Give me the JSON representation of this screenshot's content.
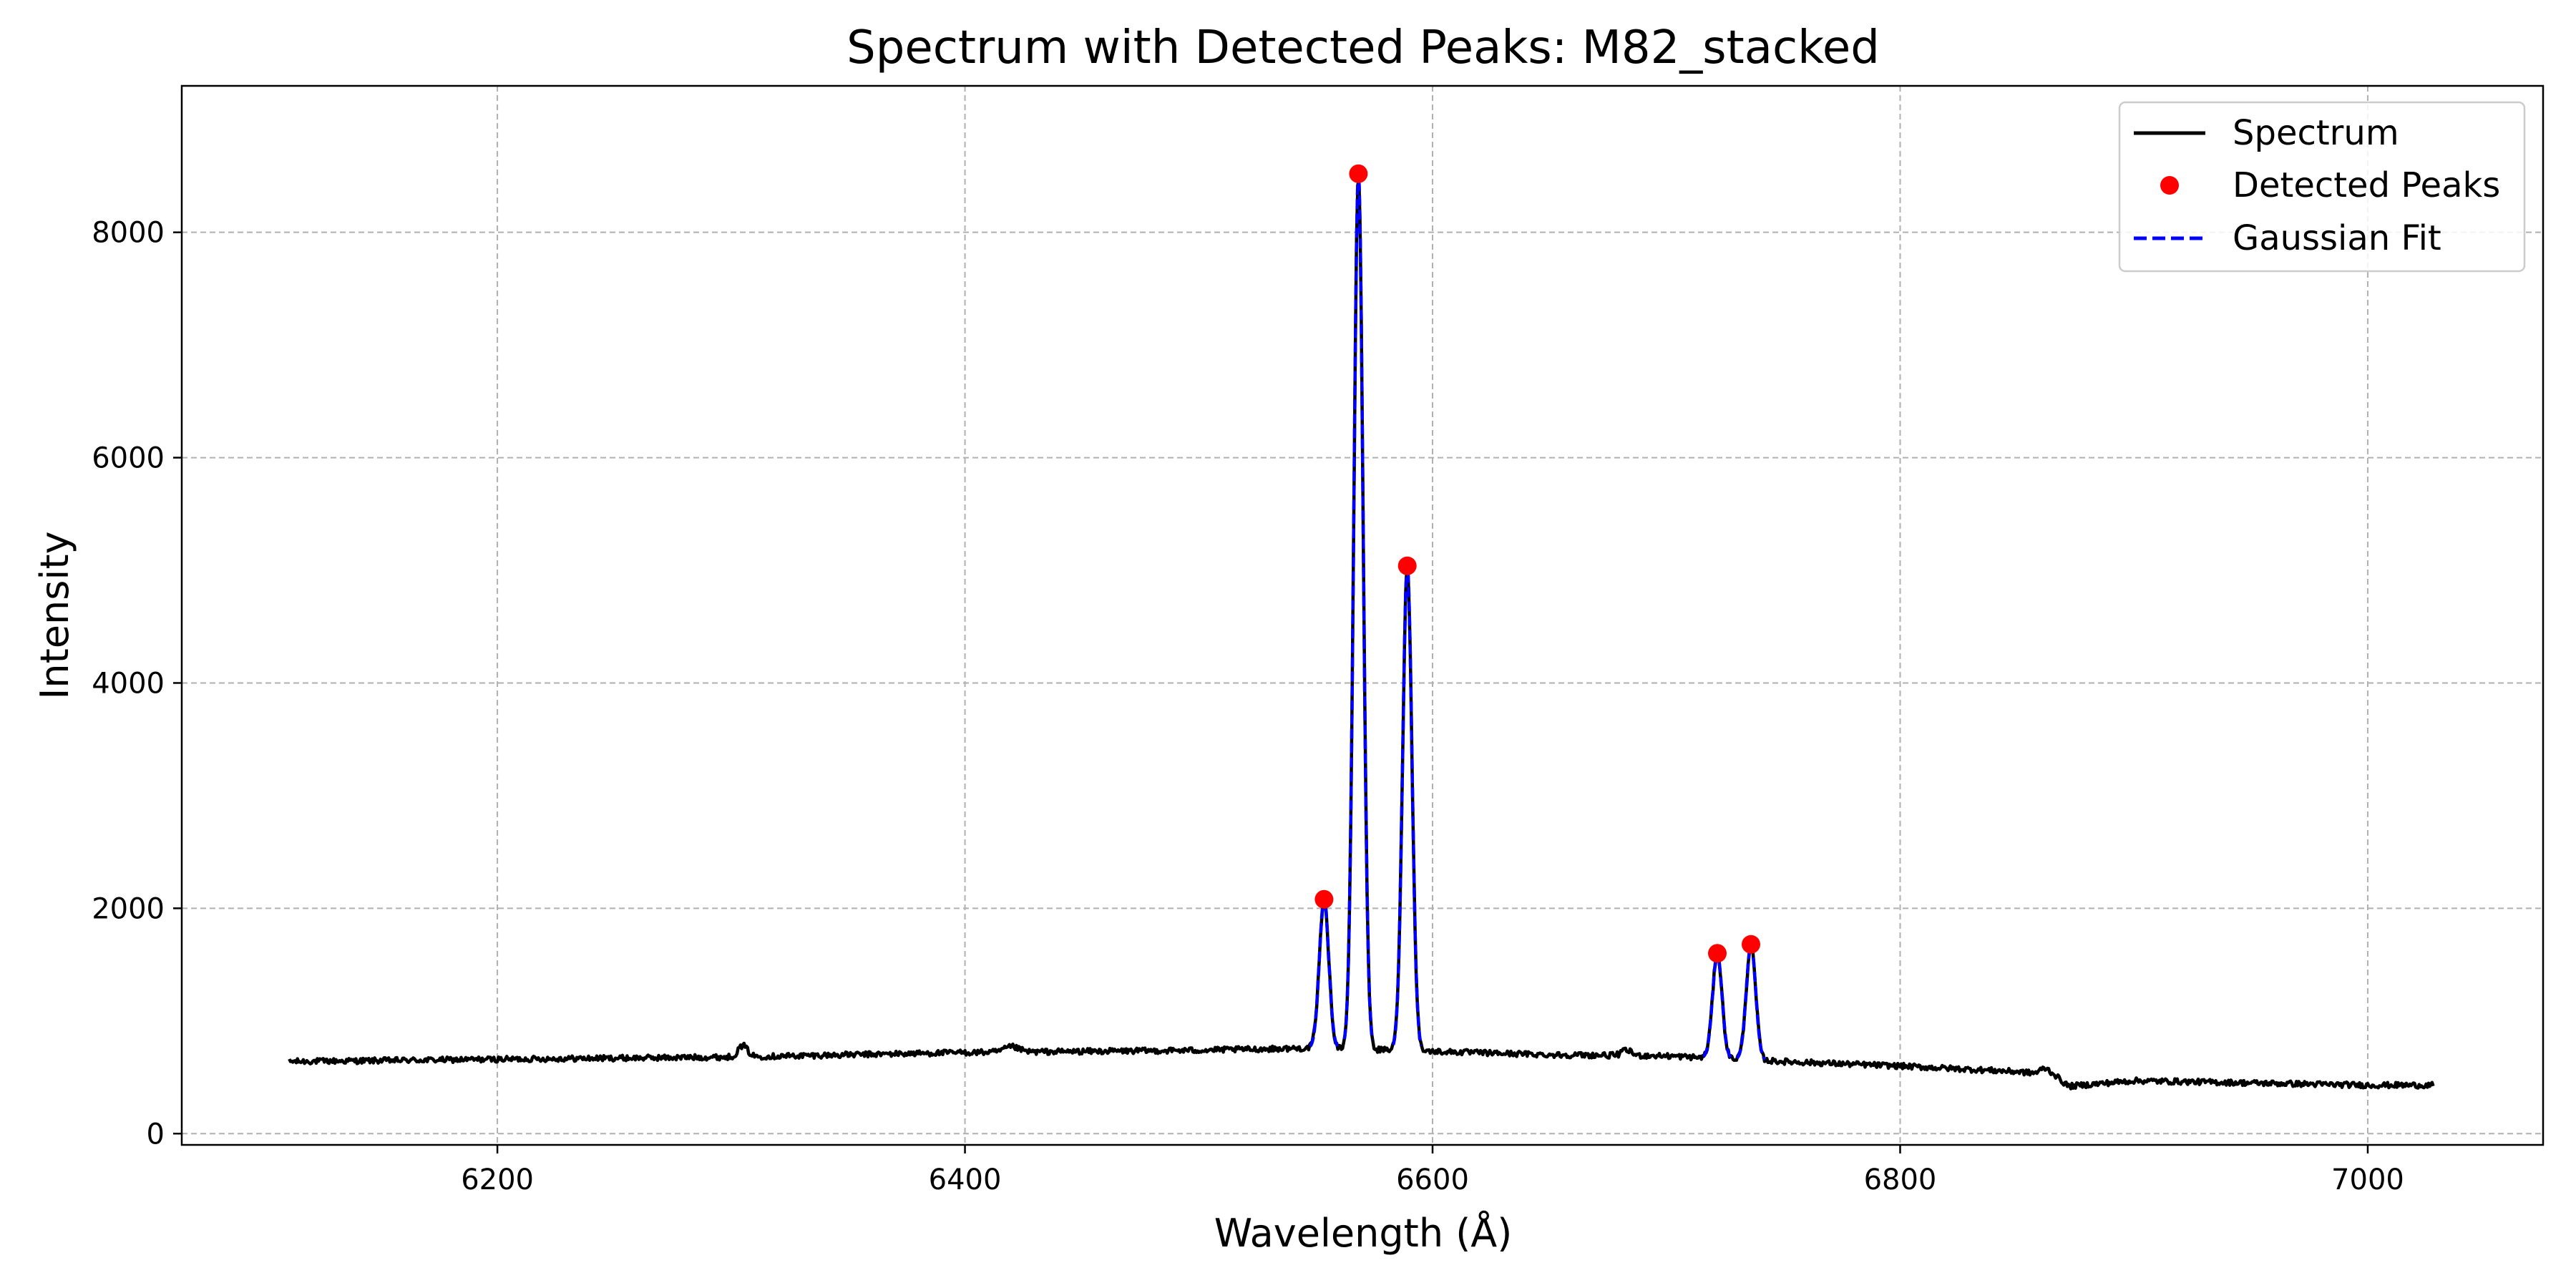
{
  "chart_data": {
    "type": "line",
    "title": "Spectrum with Detected Peaks: M82_stacked",
    "xlabel": "Wavelength (Å)",
    "ylabel": "Intensity",
    "xlim": [
      6065,
      7075
    ],
    "ylim": [
      -100,
      9300
    ],
    "xticks": [
      6200,
      6400,
      6600,
      6800,
      7000
    ],
    "yticks": [
      0,
      2000,
      4000,
      6000,
      8000
    ],
    "grid": true,
    "legend_position": "top-right",
    "legend": [
      "Spectrum",
      "Detected Peaks",
      "Gaussian Fit"
    ],
    "colors": {
      "spectrum": "#000000",
      "peaks": "#ff0000",
      "fit": "#0000ff"
    },
    "series": [
      {
        "name": "Spectrum",
        "kind": "line",
        "continuum": [
          [
            6111,
            640
          ],
          [
            6200,
            660
          ],
          [
            6300,
            680
          ],
          [
            6400,
            720
          ],
          [
            6500,
            740
          ],
          [
            6550,
            760
          ],
          [
            6600,
            730
          ],
          [
            6650,
            700
          ],
          [
            6700,
            690
          ],
          [
            6750,
            640
          ],
          [
            6800,
            600
          ],
          [
            6850,
            550
          ],
          [
            6866,
            520
          ],
          [
            6872,
            420
          ],
          [
            6900,
            470
          ],
          [
            6950,
            450
          ],
          [
            7000,
            430
          ],
          [
            7028,
            430
          ]
        ],
        "bumps": [
          [
            6305,
            780,
            2
          ],
          [
            6420,
            770,
            3
          ],
          [
            6683,
            740,
            2
          ],
          [
            6862,
            580,
            2
          ]
        ]
      },
      {
        "name": "Detected Peaks",
        "kind": "scatter",
        "x": [
          6553.6,
          6568.3,
          6589.2,
          6721.8,
          6736.2
        ],
        "y": [
          2080,
          8520,
          5040,
          1600,
          1680
        ]
      },
      {
        "name": "Gaussian Fit",
        "kind": "dashed",
        "sigma": 2.0,
        "centers": [
          6553.6,
          6568.3,
          6589.2,
          6721.8,
          6736.2
        ],
        "amplitudes": [
          2080,
          8520,
          5040,
          1600,
          1680
        ]
      }
    ]
  }
}
